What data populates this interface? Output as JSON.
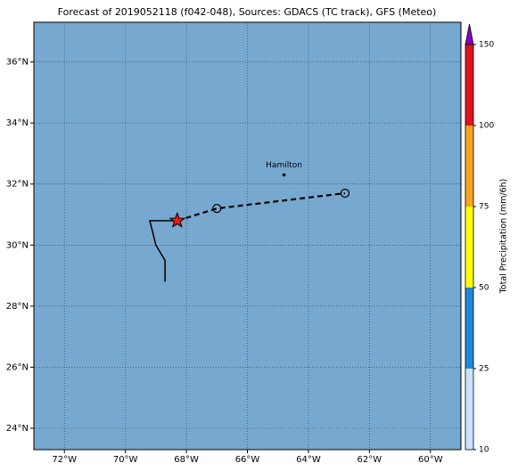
{
  "chart_data": {
    "type": "map",
    "title": "Forecast of 2019052118 (f042-048), Sources: GDACS (TC track), GFS (Meteo)",
    "xlim": [
      -73,
      -59
    ],
    "ylim": [
      23.3,
      37.3
    ],
    "xticks": [
      {
        "value": -72,
        "label": "72°W"
      },
      {
        "value": -70,
        "label": "70°W"
      },
      {
        "value": -68,
        "label": "68°W"
      },
      {
        "value": -66,
        "label": "66°W"
      },
      {
        "value": -64,
        "label": "64°W"
      },
      {
        "value": -62,
        "label": "62°W"
      },
      {
        "value": -60,
        "label": "60°W"
      }
    ],
    "yticks": [
      {
        "value": 24,
        "label": "24°N"
      },
      {
        "value": 26,
        "label": "26°N"
      },
      {
        "value": 28,
        "label": "28°N"
      },
      {
        "value": 30,
        "label": "30°N"
      },
      {
        "value": 32,
        "label": "32°N"
      },
      {
        "value": 34,
        "label": "34°N"
      },
      {
        "value": 36,
        "label": "36°N"
      }
    ],
    "grid": true,
    "background": "#77a8cf",
    "forecast_track": {
      "lon": [
        -68.3,
        -67.0,
        -62.8
      ],
      "lat": [
        30.8,
        31.2,
        31.7
      ],
      "color": "#000000"
    },
    "track_line": {
      "lon": [
        -68.3,
        -69.2,
        -69.0,
        -68.7,
        -68.7
      ],
      "lat": [
        30.8,
        30.8,
        30.0,
        29.5,
        28.8
      ],
      "color": "#000000"
    },
    "current_position": {
      "lon": -68.3,
      "lat": 30.8,
      "color": "#e41a1c"
    },
    "cities": [
      {
        "name": "Hamilton",
        "lon": -64.8,
        "lat": 32.3
      }
    ],
    "colorbar": {
      "label": "Total Precipitation (mm/6h)",
      "ticks": [
        10,
        25,
        50,
        75,
        100,
        150
      ],
      "colors": [
        "#c8e4ff",
        "#1f88d8",
        "#ffff00",
        "#f7a520",
        "#e0141a",
        "#8a00c8"
      ],
      "extend": "max"
    }
  }
}
